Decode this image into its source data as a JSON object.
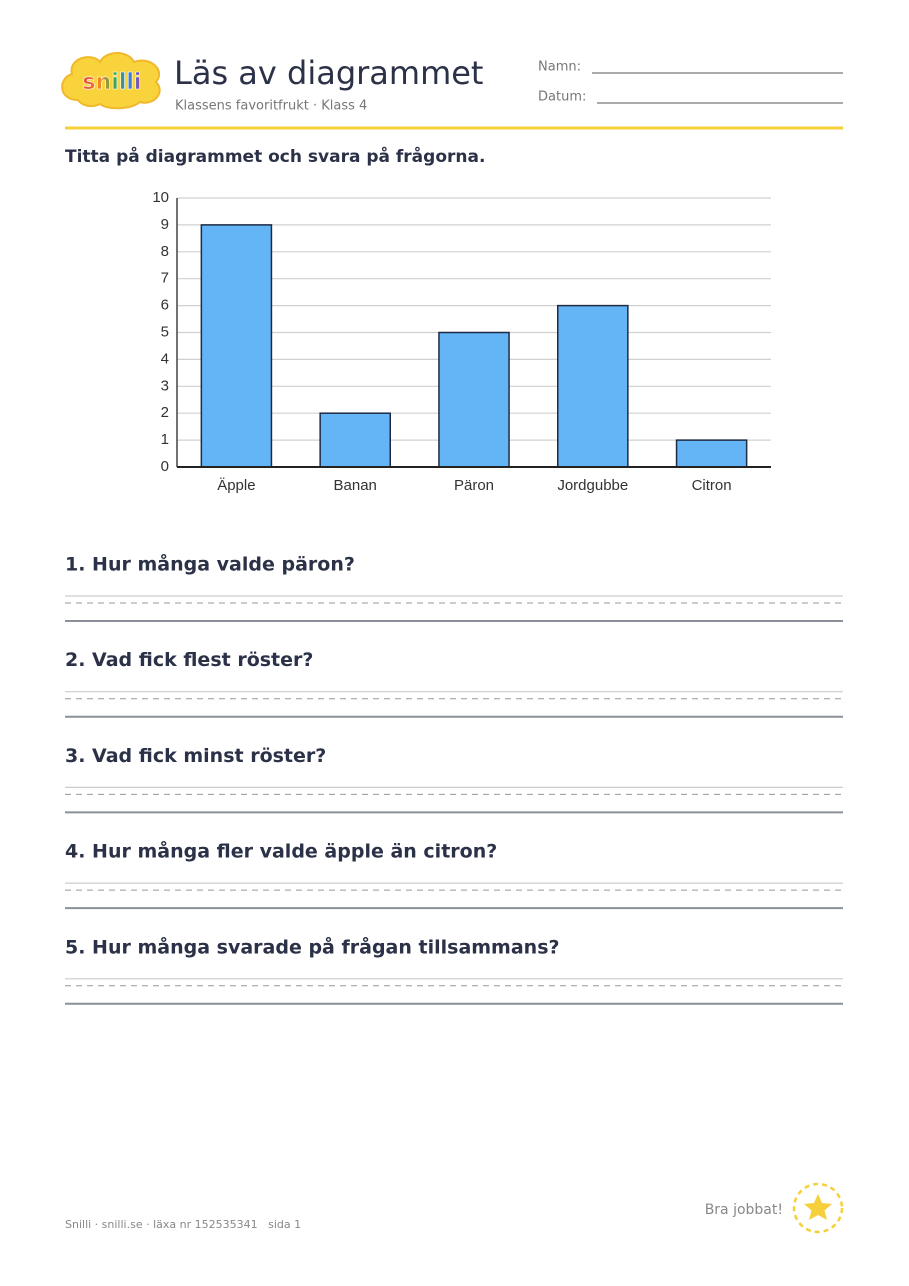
{
  "header": {
    "logo": "snilli",
    "title": "Läs av diagrammet",
    "subtitle": "Klassens favoritfrukt · Klass 4",
    "name_label": "Namn:",
    "date_label": "Datum:"
  },
  "instruction": "Titta på diagrammet och svara på frågorna.",
  "chart_data": {
    "type": "bar",
    "categories": [
      "Äpple",
      "Banan",
      "Päron",
      "Jordgubbe",
      "Citron"
    ],
    "values": [
      9,
      2,
      5,
      6,
      1
    ],
    "color": "#64b5f6",
    "ylim": [
      0,
      10
    ],
    "yticks": [
      0,
      1,
      2,
      3,
      4,
      5,
      6,
      7,
      8,
      9,
      10
    ],
    "grid": true
  },
  "questions": [
    "1. Hur många valde päron?",
    "2. Vad fick flest röster?",
    "3. Vad fick minst röster?",
    "4. Hur många fler valde äpple än citron?",
    "5. Hur många svarade på frågan tillsammans?"
  ],
  "footer": {
    "text": "Snilli · snilli.se · läxa nr 152535341   sida 1",
    "praise": "Bra jobbat!"
  }
}
